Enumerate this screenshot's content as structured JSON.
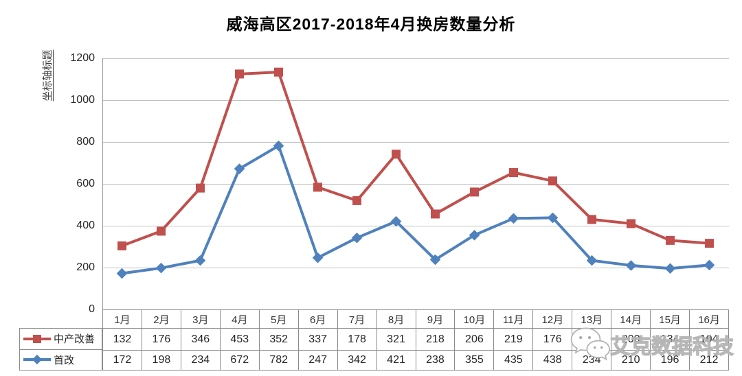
{
  "watermark": {
    "icon": "wechat-logo",
    "text": "艾克数据科技"
  },
  "chart_data": {
    "type": "line",
    "title": "威海高区2017-2018年4月换房数量分析",
    "xlabel": "",
    "ylabel": "坐标轴标题",
    "ylim": [
      0,
      1200
    ],
    "yticks": [
      0,
      200,
      400,
      600,
      800,
      1000,
      1200
    ],
    "grid": true,
    "legend_position": "data-table-left",
    "categories": [
      "1月",
      "2月",
      "3月",
      "4月",
      "5月",
      "6月",
      "7月",
      "8月",
      "9月",
      "10月",
      "11月",
      "12月",
      "13月",
      "14月",
      "15月",
      "16月"
    ],
    "series": [
      {
        "name": "中产改善",
        "color": "#C0504D",
        "marker": "square",
        "plotted_stacked_on_next_series": true,
        "values": [
          132,
          176,
          346,
          453,
          352,
          337,
          178,
          321,
          218,
          206,
          219,
          176,
          196,
          200,
          134,
          104
        ]
      },
      {
        "name": "首改",
        "color": "#4F81BD",
        "marker": "diamond",
        "plotted_stacked_on_next_series": false,
        "values": [
          172,
          198,
          234,
          672,
          782,
          247,
          342,
          421,
          238,
          355,
          435,
          438,
          234,
          210,
          196,
          212
        ]
      }
    ]
  }
}
